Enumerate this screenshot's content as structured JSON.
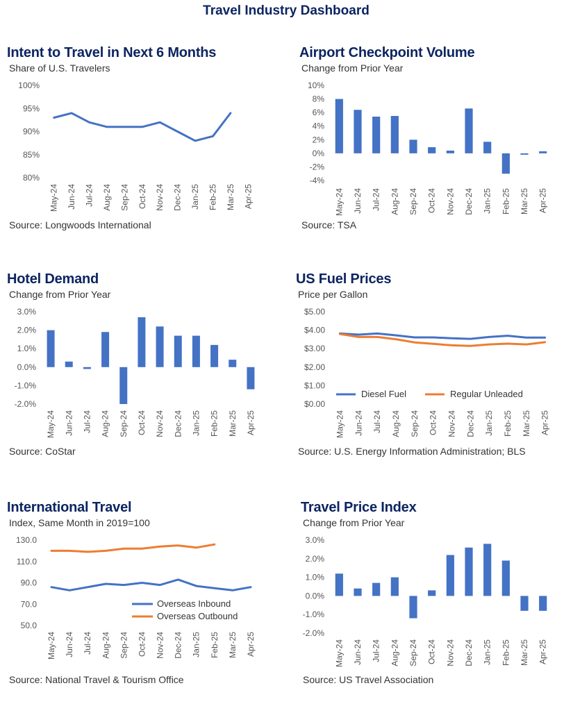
{
  "dashboard_title": "Travel Industry Dashboard",
  "colors": {
    "title": "#0c2461",
    "blue": "#4472c4",
    "orange": "#ed7d31"
  },
  "months": [
    "May-24",
    "Jun-24",
    "Jul-24",
    "Aug-24",
    "Sep-24",
    "Oct-24",
    "Nov-24",
    "Dec-24",
    "Jan-25",
    "Feb-25",
    "Mar-25",
    "Apr-25"
  ],
  "panels": {
    "intent": {
      "title": "Intent to Travel in Next 6 Months",
      "subtitle": "Share of U.S. Travelers",
      "source": "Source: Longwoods International"
    },
    "airport": {
      "title": "Airport Checkpoint Volume",
      "subtitle": "Change from Prior Year",
      "source": "Source: TSA"
    },
    "hotel": {
      "title": "Hotel Demand",
      "subtitle": "Change from Prior Year",
      "source": "Source: CoStar"
    },
    "fuel": {
      "title": "US Fuel Prices",
      "subtitle": "Price per Gallon",
      "source": "Source:  U.S. Energy Information Administration; BLS"
    },
    "intl": {
      "title": "International Travel",
      "subtitle": "Index, Same Month in 2019=100",
      "source": "Source: National Travel & Tourism Office"
    },
    "tpi": {
      "title": "Travel Price Index",
      "subtitle": "Change from Prior Year",
      "source": "Source: US Travel Association"
    }
  },
  "chart_data": [
    {
      "id": "intent",
      "type": "line",
      "categories": [
        "May-24",
        "Jun-24",
        "Jul-24",
        "Aug-24",
        "Sep-24",
        "Oct-24",
        "Nov-24",
        "Dec-24",
        "Jan-25",
        "Feb-25",
        "Mar-25",
        "Apr-25"
      ],
      "series": [
        {
          "values": [
            93,
            94,
            92,
            91,
            91,
            91,
            92,
            90,
            88,
            89,
            94,
            null
          ]
        }
      ],
      "ylim": [
        80,
        100
      ],
      "yticks": [
        "80%",
        "85%",
        "90%",
        "95%",
        "100%"
      ]
    },
    {
      "id": "airport",
      "type": "bar",
      "categories": [
        "May-24",
        "Jun-24",
        "Jul-24",
        "Aug-24",
        "Sep-24",
        "Oct-24",
        "Nov-24",
        "Dec-24",
        "Jan-25",
        "Feb-25",
        "Mar-25",
        "Apr-25"
      ],
      "values": [
        8.0,
        6.4,
        5.4,
        5.5,
        2.0,
        0.9,
        0.4,
        6.6,
        1.7,
        -3.0,
        -0.2,
        0.3
      ],
      "ylim": [
        -4,
        10
      ],
      "yticks": [
        "-4%",
        "-2%",
        "0%",
        "2%",
        "4%",
        "6%",
        "8%",
        "10%"
      ]
    },
    {
      "id": "hotel",
      "type": "bar",
      "categories": [
        "May-24",
        "Jun-24",
        "Jul-24",
        "Aug-24",
        "Sep-24",
        "Oct-24",
        "Nov-24",
        "Dec-24",
        "Jan-25",
        "Feb-25",
        "Mar-25",
        "Apr-25"
      ],
      "values": [
        2.0,
        0.3,
        -0.1,
        1.9,
        -2.0,
        2.7,
        2.2,
        1.7,
        1.7,
        1.2,
        0.4,
        -1.2
      ],
      "ylim": [
        -2,
        3
      ],
      "yticks": [
        "-2.0%",
        "-1.0%",
        "0.0%",
        "1.0%",
        "2.0%",
        "3.0%"
      ]
    },
    {
      "id": "fuel",
      "type": "line",
      "categories": [
        "May-24",
        "Jun-24",
        "Jul-24",
        "Aug-24",
        "Sep-24",
        "Oct-24",
        "Nov-24",
        "Dec-24",
        "Jan-25",
        "Feb-25",
        "Mar-25",
        "Apr-25"
      ],
      "series": [
        {
          "name": "Diesel Fuel",
          "values": [
            3.82,
            3.76,
            3.82,
            3.72,
            3.61,
            3.61,
            3.56,
            3.53,
            3.63,
            3.7,
            3.6,
            3.6
          ]
        },
        {
          "name": "Regular Unleaded",
          "values": [
            3.79,
            3.63,
            3.63,
            3.51,
            3.34,
            3.26,
            3.18,
            3.15,
            3.23,
            3.27,
            3.23,
            3.35
          ]
        }
      ],
      "ylim": [
        0,
        5
      ],
      "yticks": [
        "$0.00",
        "$1.00",
        "$2.00",
        "$3.00",
        "$4.00",
        "$5.00"
      ],
      "legend": "bottom"
    },
    {
      "id": "intl",
      "type": "line",
      "categories": [
        "May-24",
        "Jun-24",
        "Jul-24",
        "Aug-24",
        "Sep-24",
        "Oct-24",
        "Nov-24",
        "Dec-24",
        "Jan-25",
        "Feb-25",
        "Mar-25",
        "Apr-25"
      ],
      "series": [
        {
          "name": "Overseas Inbound",
          "values": [
            86,
            83,
            86,
            89,
            88,
            90,
            88,
            93,
            87,
            85,
            83,
            86
          ]
        },
        {
          "name": "Overseas Outbound",
          "values": [
            120,
            120,
            119,
            120,
            122,
            122,
            124,
            125,
            123,
            126,
            null,
            null
          ]
        }
      ],
      "ylim": [
        50,
        130
      ],
      "yticks": [
        "50.0",
        "70.0",
        "90.0",
        "110.0",
        "130.0"
      ],
      "legend": "bottom-right"
    },
    {
      "id": "tpi",
      "type": "bar",
      "categories": [
        "May-24",
        "Jun-24",
        "Jul-24",
        "Aug-24",
        "Sep-24",
        "Oct-24",
        "Nov-24",
        "Dec-24",
        "Jan-25",
        "Feb-25",
        "Mar-25",
        "Apr-25"
      ],
      "values": [
        1.2,
        0.4,
        0.7,
        1.0,
        -1.2,
        0.3,
        2.2,
        2.6,
        2.8,
        1.9,
        -0.8,
        -0.8
      ],
      "ylim": [
        -2,
        3
      ],
      "yticks": [
        "-2.0%",
        "-1.0%",
        "0.0%",
        "1.0%",
        "2.0%",
        "3.0%"
      ]
    }
  ]
}
